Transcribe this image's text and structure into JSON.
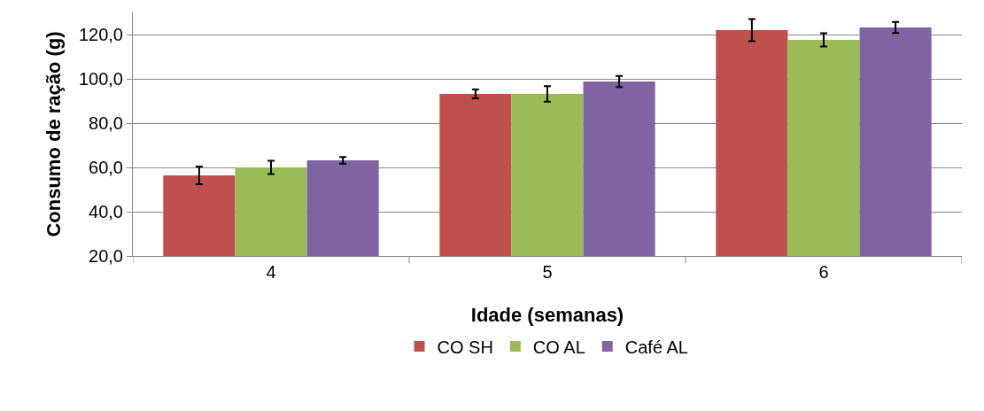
{
  "chart_data": {
    "type": "bar",
    "xlabel": "Idade (semanas)",
    "ylabel": "Consumo de ração (g)",
    "categories": [
      "4",
      "5",
      "6"
    ],
    "series": [
      {
        "name": "CO SH",
        "color": "#c0504d",
        "values": [
          56.4,
          93.2,
          122
        ],
        "errors": [
          4,
          2,
          5
        ]
      },
      {
        "name": "CO AL",
        "color": "#9bbb59",
        "values": [
          60,
          93.2,
          117.6
        ],
        "errors": [
          3,
          3.5,
          3
        ]
      },
      {
        "name": "Café AL",
        "color": "#8064a2",
        "values": [
          63.2,
          98.8,
          123.2
        ],
        "errors": [
          1.5,
          2.5,
          2.5
        ]
      }
    ],
    "ylim": [
      20,
      130
    ],
    "yticks": [
      {
        "value": 20,
        "label": "20,0"
      },
      {
        "value": 40,
        "label": "40,0"
      },
      {
        "value": 60,
        "label": "60,0"
      },
      {
        "value": 80,
        "label": "80,0"
      },
      {
        "value": 100,
        "label": "100,0"
      },
      {
        "value": 120,
        "label": "120,0"
      }
    ],
    "grid": "y",
    "legend": "bottom"
  }
}
